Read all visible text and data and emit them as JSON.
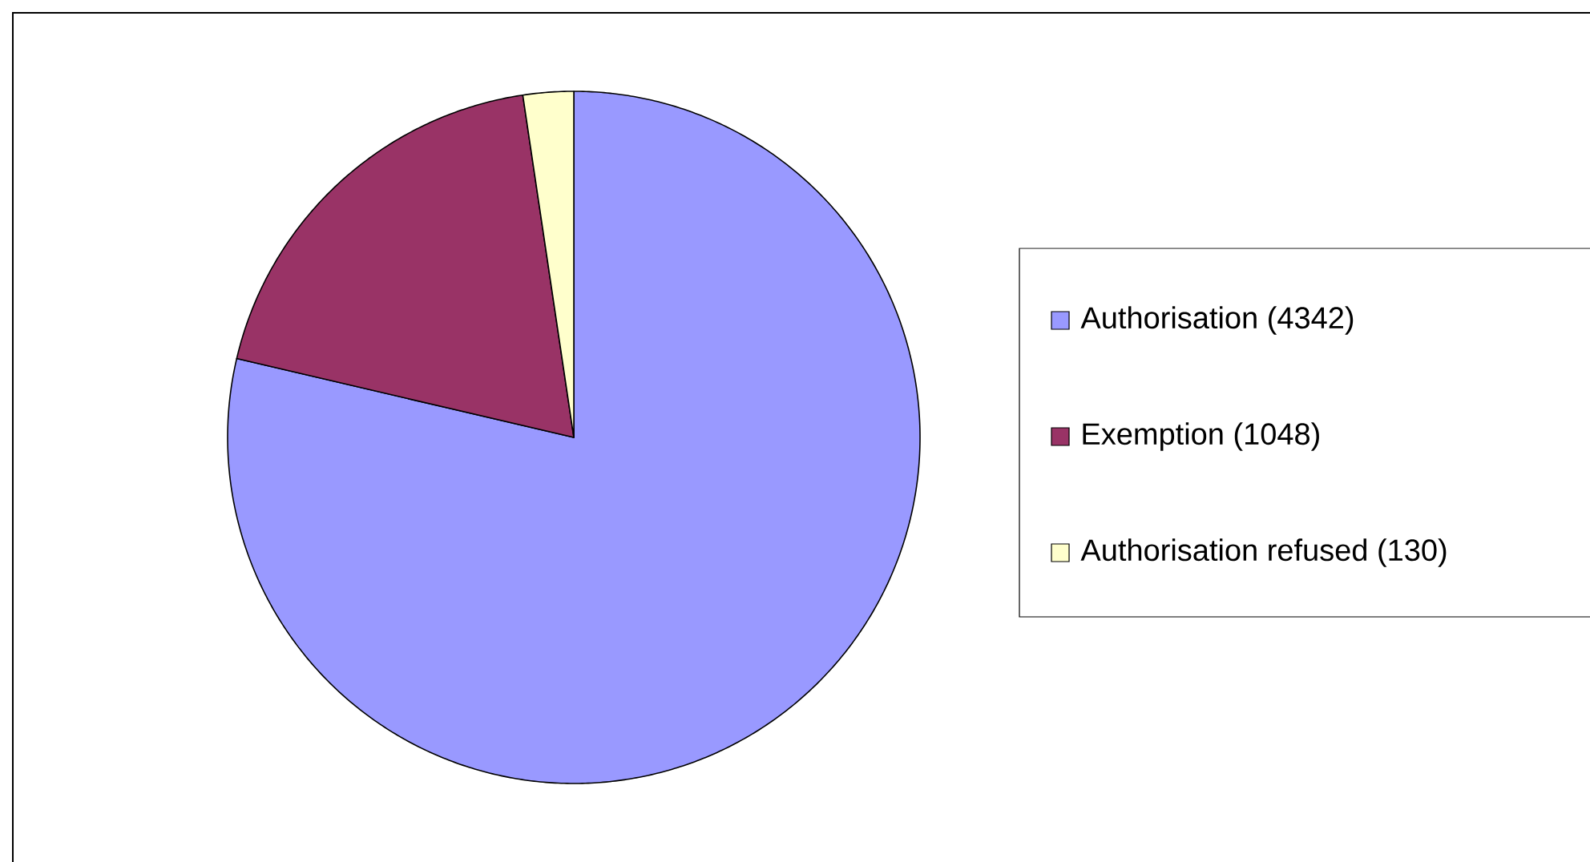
{
  "chart_data": {
    "type": "pie",
    "categories": [
      "Authorisation (4342)",
      "Exemption (1048)",
      "Authorisation refused (130)"
    ],
    "values": [
      4342,
      1048,
      130
    ],
    "colors": [
      "#9999ff",
      "#993366",
      "#ffffcc"
    ],
    "legend": "right"
  }
}
